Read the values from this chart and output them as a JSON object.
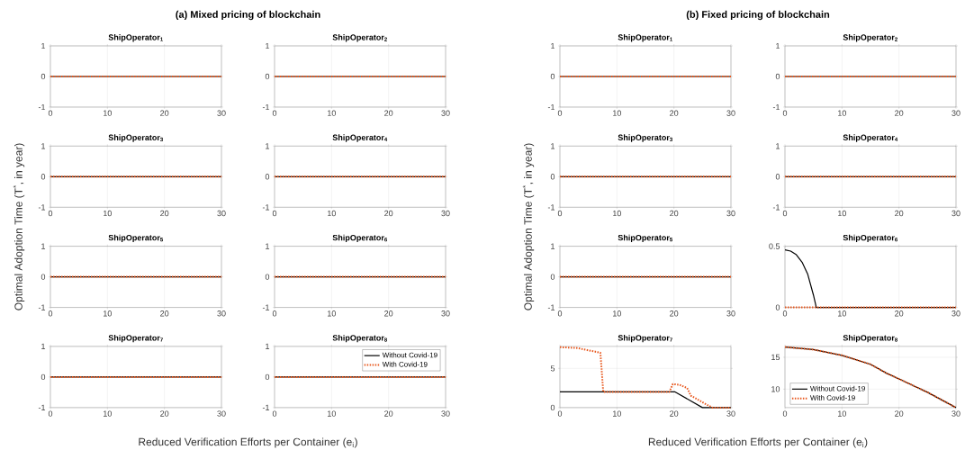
{
  "chart_data": [
    {
      "type": "line",
      "title": "ShipOperator$_{1}$",
      "annotations": [
        "(a) Mixed pricing of blockchain"
      ],
      "ylabel": "Optimal Adoption Time (T$^{*}$, in year)",
      "xlim": [
        0,
        30
      ],
      "xticks": [
        0,
        10,
        20,
        30
      ],
      "ylim": [
        -1,
        1
      ],
      "yticks": [
        -1,
        0,
        1
      ],
      "grid": true,
      "series": [
        {
          "color": "#000000",
          "line_style": "solid",
          "x": [
            0,
            30
          ],
          "values": [
            0,
            0
          ]
        },
        {
          "color": "#e8581e",
          "line_style": "dotted",
          "x": [
            0,
            30
          ],
          "values": [
            0,
            0
          ]
        }
      ]
    },
    {
      "type": "line",
      "title": "ShipOperator$_{2}$",
      "xlim": [
        0,
        30
      ],
      "xticks": [
        0,
        10,
        20,
        30
      ],
      "ylim": [
        -1,
        1
      ],
      "yticks": [
        -1,
        0,
        1
      ],
      "grid": true,
      "series": [
        {
          "color": "#000000",
          "line_style": "solid",
          "x": [
            0,
            30
          ],
          "values": [
            0,
            0
          ]
        },
        {
          "color": "#e8581e",
          "line_style": "dotted",
          "x": [
            0,
            30
          ],
          "values": [
            0,
            0
          ]
        }
      ]
    },
    {
      "type": "line",
      "title": "ShipOperator$_{3}$",
      "xlim": [
        0,
        30
      ],
      "xticks": [
        0,
        10,
        20,
        30
      ],
      "ylim": [
        -1,
        1
      ],
      "yticks": [
        -1,
        0,
        1
      ],
      "grid": true,
      "series": [
        {
          "color": "#000000",
          "line_style": "solid",
          "x": [
            0,
            30
          ],
          "values": [
            0,
            0
          ]
        },
        {
          "color": "#e8581e",
          "line_style": "dotted",
          "x": [
            0,
            30
          ],
          "values": [
            0,
            0
          ]
        }
      ]
    },
    {
      "type": "line",
      "title": "ShipOperator$_{4}$",
      "xlim": [
        0,
        30
      ],
      "xticks": [
        0,
        10,
        20,
        30
      ],
      "ylim": [
        -1,
        1
      ],
      "yticks": [
        -1,
        0,
        1
      ],
      "grid": true,
      "series": [
        {
          "color": "#000000",
          "line_style": "solid",
          "x": [
            0,
            30
          ],
          "values": [
            0,
            0
          ]
        },
        {
          "color": "#e8581e",
          "line_style": "dotted",
          "x": [
            0,
            30
          ],
          "values": [
            0,
            0
          ]
        }
      ]
    },
    {
      "type": "line",
      "title": "ShipOperator$_{5}$",
      "xlim": [
        0,
        30
      ],
      "xticks": [
        0,
        10,
        20,
        30
      ],
      "ylim": [
        -1,
        1
      ],
      "yticks": [
        -1,
        0,
        1
      ],
      "grid": true,
      "series": [
        {
          "color": "#000000",
          "line_style": "solid",
          "x": [
            0,
            30
          ],
          "values": [
            0,
            0
          ]
        },
        {
          "color": "#e8581e",
          "line_style": "dotted",
          "x": [
            0,
            30
          ],
          "values": [
            0,
            0
          ]
        }
      ]
    },
    {
      "type": "line",
      "title": "ShipOperator$_{6}$",
      "xlim": [
        0,
        30
      ],
      "xticks": [
        0,
        10,
        20,
        30
      ],
      "ylim": [
        -1,
        1
      ],
      "yticks": [
        -1,
        0,
        1
      ],
      "grid": true,
      "series": [
        {
          "color": "#000000",
          "line_style": "solid",
          "x": [
            0,
            30
          ],
          "values": [
            0,
            0
          ]
        },
        {
          "color": "#e8581e",
          "line_style": "dotted",
          "x": [
            0,
            30
          ],
          "values": [
            0,
            0
          ]
        }
      ]
    },
    {
      "type": "line",
      "title": "ShipOperator$_{7}$",
      "xlabel": "Reduced Verification Efforts per Container (e$_{i}$)",
      "xlim": [
        0,
        30
      ],
      "xticks": [
        0,
        10,
        20,
        30
      ],
      "ylim": [
        -1,
        1
      ],
      "yticks": [
        -1,
        0,
        1
      ],
      "grid": true,
      "series": [
        {
          "color": "#000000",
          "line_style": "solid",
          "x": [
            0,
            30
          ],
          "values": [
            0,
            0
          ]
        },
        {
          "color": "#e8581e",
          "line_style": "dotted",
          "x": [
            0,
            30
          ],
          "values": [
            0,
            0
          ]
        }
      ]
    },
    {
      "type": "line",
      "title": "ShipOperator$_{8}$",
      "legend": "top right",
      "xlim": [
        0,
        30
      ],
      "xticks": [
        0,
        10,
        20,
        30
      ],
      "ylim": [
        -1,
        1
      ],
      "yticks": [
        -1,
        0,
        1
      ],
      "grid": true,
      "series": [
        {
          "name": "Without Covid-19",
          "color": "#000000",
          "line_style": "solid",
          "x": [
            0,
            30
          ],
          "values": [
            0,
            0
          ]
        },
        {
          "name": "With Covid-19",
          "color": "#e8581e",
          "line_style": "dotted",
          "x": [
            0,
            30
          ],
          "values": [
            0,
            0
          ]
        }
      ]
    },
    {
      "type": "line",
      "title": "ShipOperator$_{1}$",
      "annotations": [
        "(b) Fixed pricing of blockchain"
      ],
      "ylabel": "Optimal Adoption Time (T$^{*}$, in year)",
      "xlim": [
        0,
        30
      ],
      "xticks": [
        0,
        10,
        20,
        30
      ],
      "ylim": [
        -1,
        1
      ],
      "yticks": [
        -1,
        0,
        1
      ],
      "grid": true,
      "series": [
        {
          "color": "#000000",
          "line_style": "solid",
          "x": [
            0,
            30
          ],
          "values": [
            0,
            0
          ]
        },
        {
          "color": "#e8581e",
          "line_style": "dotted",
          "x": [
            0,
            30
          ],
          "values": [
            0,
            0
          ]
        }
      ]
    },
    {
      "type": "line",
      "title": "ShipOperator$_{2}$",
      "xlim": [
        0,
        30
      ],
      "xticks": [
        0,
        10,
        20,
        30
      ],
      "ylim": [
        -1,
        1
      ],
      "yticks": [
        -1,
        0,
        1
      ],
      "grid": true,
      "series": [
        {
          "color": "#000000",
          "line_style": "solid",
          "x": [
            0,
            30
          ],
          "values": [
            0,
            0
          ]
        },
        {
          "color": "#e8581e",
          "line_style": "dotted",
          "x": [
            0,
            30
          ],
          "values": [
            0,
            0
          ]
        }
      ]
    },
    {
      "type": "line",
      "title": "ShipOperator$_{3}$",
      "xlim": [
        0,
        30
      ],
      "xticks": [
        0,
        10,
        20,
        30
      ],
      "ylim": [
        -1,
        1
      ],
      "yticks": [
        -1,
        0,
        1
      ],
      "grid": true,
      "series": [
        {
          "color": "#000000",
          "line_style": "solid",
          "x": [
            0,
            30
          ],
          "values": [
            0,
            0
          ]
        },
        {
          "color": "#e8581e",
          "line_style": "dotted",
          "x": [
            0,
            30
          ],
          "values": [
            0,
            0
          ]
        }
      ]
    },
    {
      "type": "line",
      "title": "ShipOperator$_{4}$",
      "xlim": [
        0,
        30
      ],
      "xticks": [
        0,
        10,
        20,
        30
      ],
      "ylim": [
        -1,
        1
      ],
      "yticks": [
        -1,
        0,
        1
      ],
      "grid": true,
      "series": [
        {
          "color": "#000000",
          "line_style": "solid",
          "x": [
            0,
            30
          ],
          "values": [
            0,
            0
          ]
        },
        {
          "color": "#e8581e",
          "line_style": "dotted",
          "x": [
            0,
            30
          ],
          "values": [
            0,
            0
          ]
        }
      ]
    },
    {
      "type": "line",
      "title": "ShipOperator$_{5}$",
      "xlim": [
        0,
        30
      ],
      "xticks": [
        0,
        10,
        20,
        30
      ],
      "ylim": [
        -1,
        1
      ],
      "yticks": [
        -1,
        0,
        1
      ],
      "grid": true,
      "series": [
        {
          "color": "#000000",
          "line_style": "solid",
          "x": [
            0,
            30
          ],
          "values": [
            0,
            0
          ]
        },
        {
          "color": "#e8581e",
          "line_style": "dotted",
          "x": [
            0,
            30
          ],
          "values": [
            0,
            0
          ]
        }
      ]
    },
    {
      "type": "line",
      "title": "ShipOperator$_{6}$",
      "xlim": [
        0,
        30
      ],
      "xticks": [
        0,
        10,
        20,
        30
      ],
      "ylim": [
        0,
        0.5
      ],
      "yticks": [
        0,
        0.5
      ],
      "grid": true,
      "series": [
        {
          "color": "#000000",
          "line_style": "solid",
          "x": [
            0,
            1,
            2,
            3,
            4,
            5,
            5.5,
            30
          ],
          "values": [
            0.47,
            0.46,
            0.43,
            0.37,
            0.27,
            0.1,
            0,
            0
          ]
        },
        {
          "color": "#e8581e",
          "line_style": "dotted",
          "x": [
            0,
            30
          ],
          "values": [
            0,
            0
          ]
        }
      ]
    },
    {
      "type": "line",
      "title": "ShipOperator$_{7}$",
      "xlabel": "Reduced Verification Efforts per Container (e$_{i}$)",
      "xlim": [
        0,
        30
      ],
      "xticks": [
        0,
        10,
        20,
        30
      ],
      "ylim": [
        0,
        7.8
      ],
      "yticks": [
        0,
        5
      ],
      "grid": true,
      "series": [
        {
          "color": "#000000",
          "line_style": "solid",
          "x": [
            0,
            20.2,
            25,
            30
          ],
          "values": [
            2,
            2,
            0,
            0
          ]
        },
        {
          "color": "#e8581e",
          "line_style": "dotted",
          "x": [
            0,
            3,
            5,
            7.1,
            7.6,
            19.2,
            19.8,
            21,
            22.3,
            23,
            26.7,
            30
          ],
          "values": [
            7.7,
            7.6,
            7.3,
            7.0,
            2,
            2,
            3.0,
            2.9,
            2.5,
            1.5,
            0,
            0
          ]
        }
      ]
    },
    {
      "type": "line",
      "title": "ShipOperator$_{8}$",
      "legend": "bottom left",
      "xlim": [
        0,
        30
      ],
      "xticks": [
        0,
        10,
        20,
        30
      ],
      "ylim": [
        7.1,
        16.7
      ],
      "yticks": [
        10,
        15
      ],
      "grid": true,
      "series": [
        {
          "name": "Without Covid-19",
          "color": "#000000",
          "line_style": "solid",
          "x": [
            0,
            5,
            10,
            15,
            17.8,
            20,
            25,
            30
          ],
          "values": [
            16.6,
            16.2,
            15.3,
            13.9,
            12.5,
            11.6,
            9.5,
            7.1
          ]
        },
        {
          "name": "With Covid-19",
          "color": "#e8581e",
          "line_style": "dotted",
          "x": [
            0,
            5,
            10,
            15,
            17.8,
            20,
            25,
            30
          ],
          "values": [
            16.6,
            16.2,
            15.3,
            13.9,
            12.5,
            11.6,
            9.5,
            7.1
          ]
        }
      ]
    }
  ]
}
